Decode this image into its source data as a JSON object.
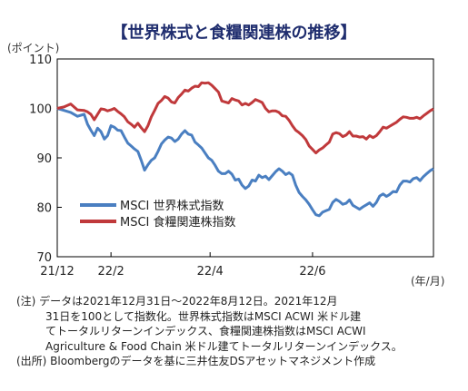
{
  "title": "【世界株式と食糧関連株の推移】",
  "y_unit_label": "(ポイント)",
  "x_unit_label": "(年/月)",
  "notes": {
    "line1": "(注) データは2021年12月31日～2022年8月12日。2021年12月",
    "line2": "31日を100として指数化。世界株式指数はMSCI ACWI 米ドル建",
    "line3": "てトータルリターンインデックス、食糧関連株指数はMSCI ACWI",
    "line4": "Agriculture & Food Chain 米ドル建てトータルリターンインデックス。",
    "line5": "(出所) Bloombergのデータを基に三井住友DSアセットマネジメント作成"
  },
  "chart_data": {
    "type": "line",
    "title": "【世界株式と食糧関連株の推移】",
    "ylabel": "(ポイント)",
    "xlabel": "(年/月)",
    "ylim": [
      70,
      110
    ],
    "yticks": [
      70,
      80,
      90,
      100,
      110
    ],
    "xticks": [
      {
        "label": "21/12",
        "t": 0
      },
      {
        "label": "22/2",
        "t": 32
      },
      {
        "label": "22/4",
        "t": 91
      },
      {
        "label": "22/6",
        "t": 152
      }
    ],
    "xrange": [
      0,
      224
    ],
    "grid": false,
    "legend": "lower-left",
    "series": [
      {
        "name": "MSCI 世界株式指数",
        "color": "#4a7fc1",
        "points": [
          [
            0,
            100
          ],
          [
            4,
            99.6
          ],
          [
            8,
            99.2
          ],
          [
            12,
            98.4
          ],
          [
            16,
            98.8
          ],
          [
            18,
            96.8
          ],
          [
            20,
            95.6
          ],
          [
            22,
            94.5
          ],
          [
            24,
            96
          ],
          [
            26,
            95.3
          ],
          [
            28,
            93.8
          ],
          [
            30,
            94.5
          ],
          [
            32,
            96.5
          ],
          [
            34,
            96.2
          ],
          [
            36,
            95.6
          ],
          [
            38,
            95.5
          ],
          [
            40,
            94.2
          ],
          [
            42,
            93
          ],
          [
            44,
            92.4
          ],
          [
            46,
            91.8
          ],
          [
            48,
            91.3
          ],
          [
            50,
            89.5
          ],
          [
            52,
            87.5
          ],
          [
            54,
            88.6
          ],
          [
            56,
            89.5
          ],
          [
            58,
            90
          ],
          [
            60,
            91.3
          ],
          [
            62,
            92.8
          ],
          [
            64,
            93.6
          ],
          [
            66,
            94.2
          ],
          [
            68,
            94
          ],
          [
            70,
            93.3
          ],
          [
            72,
            93.8
          ],
          [
            74,
            94.8
          ],
          [
            76,
            95.5
          ],
          [
            78,
            94.8
          ],
          [
            80,
            94.6
          ],
          [
            82,
            93.2
          ],
          [
            84,
            92.6
          ],
          [
            86,
            92
          ],
          [
            88,
            91
          ],
          [
            90,
            90
          ],
          [
            92,
            89.5
          ],
          [
            94,
            88.5
          ],
          [
            96,
            87.3
          ],
          [
            98,
            86.8
          ],
          [
            100,
            86.8
          ],
          [
            102,
            87.3
          ],
          [
            104,
            86.7
          ],
          [
            106,
            85.5
          ],
          [
            108,
            85.7
          ],
          [
            110,
            84.5
          ],
          [
            112,
            83.8
          ],
          [
            114,
            84.3
          ],
          [
            116,
            85.5
          ],
          [
            118,
            85.3
          ],
          [
            120,
            86.5
          ],
          [
            122,
            86
          ],
          [
            124,
            86.3
          ],
          [
            126,
            85.6
          ],
          [
            128,
            86.4
          ],
          [
            130,
            87.2
          ],
          [
            132,
            87.8
          ],
          [
            134,
            87.3
          ],
          [
            136,
            86.6
          ],
          [
            138,
            87
          ],
          [
            140,
            86.5
          ],
          [
            142,
            84.5
          ],
          [
            144,
            83
          ],
          [
            146,
            82.2
          ],
          [
            148,
            81.5
          ],
          [
            150,
            80.6
          ],
          [
            152,
            79.5
          ],
          [
            154,
            78.5
          ],
          [
            156,
            78.3
          ],
          [
            158,
            79
          ],
          [
            160,
            79.3
          ],
          [
            162,
            79.6
          ],
          [
            164,
            81
          ],
          [
            166,
            81.6
          ],
          [
            168,
            81.2
          ],
          [
            170,
            80.6
          ],
          [
            172,
            80.8
          ],
          [
            174,
            81.5
          ],
          [
            176,
            80.4
          ],
          [
            178,
            80
          ],
          [
            180,
            79.6
          ],
          [
            182,
            80.1
          ],
          [
            184,
            80.5
          ],
          [
            186,
            80.9
          ],
          [
            188,
            80.2
          ],
          [
            190,
            81
          ],
          [
            192,
            82.3
          ],
          [
            194,
            82.7
          ],
          [
            196,
            82.2
          ],
          [
            198,
            82.6
          ],
          [
            200,
            83.2
          ],
          [
            202,
            83.1
          ],
          [
            204,
            84.5
          ],
          [
            206,
            85.3
          ],
          [
            208,
            85.3
          ],
          [
            210,
            85.1
          ],
          [
            212,
            85.8
          ],
          [
            214,
            86
          ],
          [
            216,
            85.4
          ],
          [
            218,
            86.2
          ],
          [
            220,
            86.8
          ],
          [
            222,
            87.4
          ],
          [
            224,
            87.8
          ]
        ]
      },
      {
        "name": "MSCI 食糧関連株指数",
        "color": "#c0393b",
        "points": [
          [
            0,
            100
          ],
          [
            4,
            100.3
          ],
          [
            8,
            100.9
          ],
          [
            12,
            99.7
          ],
          [
            16,
            99.6
          ],
          [
            18,
            99.3
          ],
          [
            20,
            98.8
          ],
          [
            22,
            97.7
          ],
          [
            24,
            98.8
          ],
          [
            26,
            99.9
          ],
          [
            28,
            99.8
          ],
          [
            30,
            99.5
          ],
          [
            32,
            99.7
          ],
          [
            34,
            100
          ],
          [
            36,
            99.4
          ],
          [
            38,
            98.9
          ],
          [
            40,
            98.3
          ],
          [
            42,
            97.3
          ],
          [
            44,
            96.8
          ],
          [
            46,
            96.2
          ],
          [
            48,
            97
          ],
          [
            50,
            96.1
          ],
          [
            52,
            95.3
          ],
          [
            54,
            96.5
          ],
          [
            56,
            98.3
          ],
          [
            58,
            99.6
          ],
          [
            60,
            101
          ],
          [
            62,
            101.6
          ],
          [
            64,
            102.4
          ],
          [
            66,
            102.1
          ],
          [
            68,
            101.3
          ],
          [
            70,
            101.1
          ],
          [
            72,
            102.2
          ],
          [
            74,
            102.9
          ],
          [
            76,
            103.7
          ],
          [
            78,
            103.5
          ],
          [
            80,
            104.1
          ],
          [
            82,
            104.5
          ],
          [
            84,
            104.4
          ],
          [
            86,
            105.2
          ],
          [
            88,
            105.1
          ],
          [
            90,
            105.2
          ],
          [
            92,
            104.7
          ],
          [
            94,
            104
          ],
          [
            96,
            103.3
          ],
          [
            98,
            101.5
          ],
          [
            100,
            101.3
          ],
          [
            102,
            101.1
          ],
          [
            104,
            102
          ],
          [
            106,
            101.7
          ],
          [
            108,
            101.5
          ],
          [
            110,
            100.7
          ],
          [
            112,
            101
          ],
          [
            114,
            100.7
          ],
          [
            116,
            101.2
          ],
          [
            118,
            101.8
          ],
          [
            120,
            101.5
          ],
          [
            122,
            101.2
          ],
          [
            124,
            100
          ],
          [
            126,
            99.3
          ],
          [
            128,
            99.5
          ],
          [
            130,
            99.5
          ],
          [
            132,
            99.2
          ],
          [
            134,
            98.5
          ],
          [
            136,
            98.4
          ],
          [
            138,
            97.6
          ],
          [
            140,
            96.5
          ],
          [
            142,
            95.6
          ],
          [
            144,
            95.1
          ],
          [
            146,
            94.5
          ],
          [
            148,
            93.7
          ],
          [
            150,
            92.4
          ],
          [
            152,
            91.7
          ],
          [
            154,
            91
          ],
          [
            156,
            91.6
          ],
          [
            158,
            92
          ],
          [
            160,
            92.6
          ],
          [
            162,
            93.2
          ],
          [
            164,
            94.8
          ],
          [
            166,
            95.1
          ],
          [
            168,
            94.9
          ],
          [
            170,
            94.3
          ],
          [
            172,
            94.6
          ],
          [
            174,
            95.3
          ],
          [
            176,
            94.4
          ],
          [
            178,
            94.4
          ],
          [
            180,
            94.2
          ],
          [
            182,
            94.3
          ],
          [
            184,
            93.8
          ],
          [
            186,
            94.5
          ],
          [
            188,
            94.1
          ],
          [
            190,
            94.5
          ],
          [
            192,
            95.3
          ],
          [
            194,
            96.2
          ],
          [
            196,
            96
          ],
          [
            198,
            96.4
          ],
          [
            200,
            96.8
          ],
          [
            202,
            97.2
          ],
          [
            204,
            97.8
          ],
          [
            206,
            98.3
          ],
          [
            208,
            98.2
          ],
          [
            210,
            98
          ],
          [
            212,
            98
          ],
          [
            214,
            98.2
          ],
          [
            216,
            97.9
          ],
          [
            218,
            98.5
          ],
          [
            220,
            99
          ],
          [
            222,
            99.5
          ],
          [
            224,
            99.9
          ]
        ]
      }
    ]
  }
}
